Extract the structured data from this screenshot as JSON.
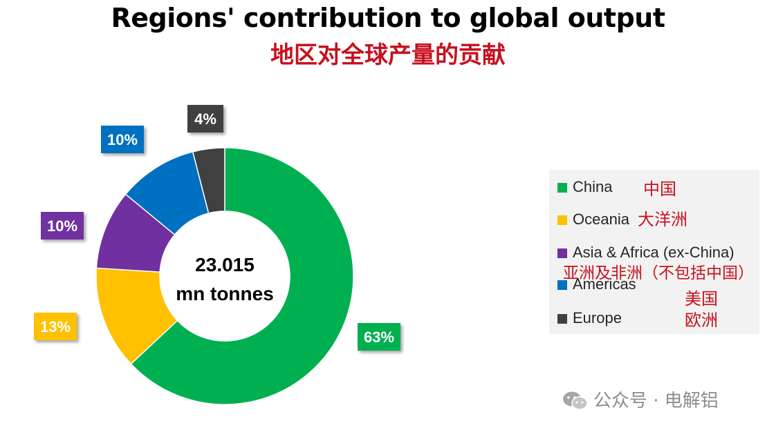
{
  "title": "Regions' contribution to global output",
  "subtitle": "地区对全球产量的贡献",
  "chart_data": {
    "type": "pie",
    "variant": "donut",
    "center_label": [
      "23.015",
      "mn tonnes"
    ],
    "slices": [
      {
        "label": "China",
        "label_cn": "中国",
        "value": 63,
        "data_label": "63%",
        "color": "#00b050"
      },
      {
        "label": "Oceania",
        "label_cn": "大洋洲",
        "value": 13,
        "data_label": "13%",
        "color": "#ffc000"
      },
      {
        "label": "Asia & Africa (ex-China)",
        "label_cn": "亚洲及非洲（不包括中国）",
        "value": 10,
        "data_label": "10%",
        "color": "#7030a0"
      },
      {
        "label": "Americas",
        "label_cn": "美国",
        "value": 10,
        "data_label": "10%",
        "color": "#0070c0"
      },
      {
        "label": "Europe",
        "label_cn": "欧洲",
        "value": 4,
        "data_label": "4%",
        "color": "#404040"
      }
    ],
    "legend_position": "right"
  },
  "watermark": {
    "text": "公众号 · 电解铝",
    "icon": "wechat-icon"
  }
}
